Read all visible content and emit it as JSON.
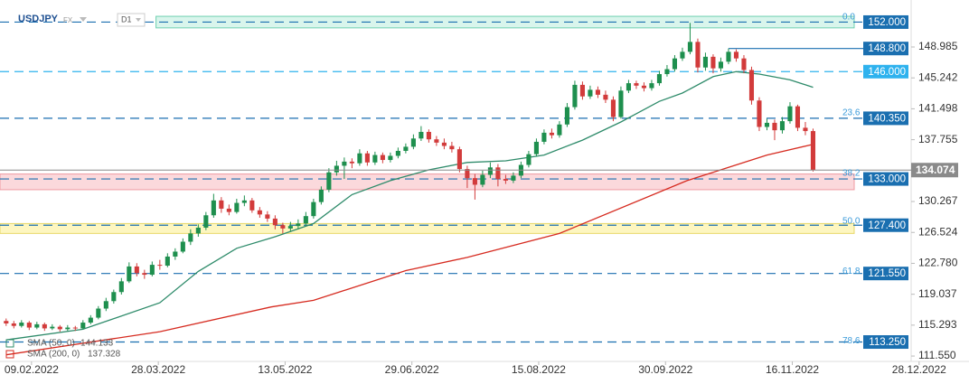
{
  "chart_data": {
    "type": "candlestick",
    "symbol": "USDJPY",
    "market": "FX",
    "interval": "D1",
    "xlim": [
      -0.8,
      118
    ],
    "ylim": [
      110.9,
      153.1
    ],
    "xticks": [
      {
        "value": 3.3,
        "label": "09.02.2022"
      },
      {
        "value": 19.8,
        "label": "28.03.2022"
      },
      {
        "value": 36.3,
        "label": "13.05.2022"
      },
      {
        "value": 52.8,
        "label": "29.06.2022"
      },
      {
        "value": 69.3,
        "label": "15.08.2022"
      },
      {
        "value": 85.8,
        "label": "30.09.2022"
      },
      {
        "value": 102.3,
        "label": "16.11.2022"
      },
      {
        "value": 118.8,
        "label": "28.12.2022"
      }
    ],
    "yticks": [
      148.985,
      145.242,
      141.498,
      137.755,
      130.267,
      126.524,
      {
        "value": 122.78,
        "label": "122.780"
      },
      119.037,
      115.293,
      {
        "value": 111.55,
        "label": "111.550"
      }
    ],
    "up_color": "#1e8f4e",
    "down_color": "#d23b3b",
    "candles": [
      [
        115.8,
        116.1,
        115.2,
        115.5
      ],
      [
        115.5,
        115.8,
        114.9,
        115.2
      ],
      [
        115.2,
        115.9,
        115.0,
        115.6
      ],
      [
        115.6,
        115.8,
        114.7,
        115.0
      ],
      [
        115.0,
        115.7,
        114.8,
        115.4
      ],
      [
        115.4,
        115.6,
        114.6,
        114.9
      ],
      [
        114.9,
        115.4,
        114.7,
        115.1
      ],
      [
        115.1,
        115.3,
        114.5,
        114.8
      ],
      [
        114.8,
        115.3,
        114.6,
        115.0
      ],
      [
        115.0,
        115.2,
        114.6,
        114.9
      ],
      [
        114.9,
        115.9,
        114.8,
        115.6
      ],
      [
        115.6,
        116.5,
        115.4,
        116.2
      ],
      [
        116.2,
        117.6,
        116.0,
        117.3
      ],
      [
        117.3,
        118.6,
        117.0,
        118.2
      ],
      [
        118.2,
        119.6,
        117.9,
        119.3
      ],
      [
        119.3,
        121.0,
        119.0,
        120.6
      ],
      [
        120.6,
        122.9,
        120.4,
        122.4
      ],
      [
        122.4,
        122.8,
        121.2,
        121.6
      ],
      [
        121.6,
        122.0,
        120.9,
        121.4
      ],
      [
        121.4,
        123.0,
        121.2,
        122.6
      ],
      [
        122.6,
        123.2,
        122.0,
        122.5
      ],
      [
        122.5,
        124.0,
        122.3,
        123.6
      ],
      [
        123.6,
        124.6,
        123.2,
        124.2
      ],
      [
        124.2,
        125.8,
        124.0,
        125.4
      ],
      [
        125.4,
        126.9,
        125.0,
        126.4
      ],
      [
        126.4,
        127.5,
        126.0,
        127.1
      ],
      [
        127.1,
        129.0,
        126.8,
        128.6
      ],
      [
        128.6,
        131.2,
        128.3,
        130.4
      ],
      [
        130.4,
        130.8,
        128.9,
        129.4
      ],
      [
        129.4,
        129.9,
        128.6,
        129.0
      ],
      [
        129.0,
        130.6,
        128.8,
        130.1
      ],
      [
        130.1,
        131.0,
        129.7,
        130.4
      ],
      [
        130.4,
        130.7,
        128.9,
        129.2
      ],
      [
        129.2,
        129.6,
        128.3,
        128.7
      ],
      [
        128.7,
        129.1,
        127.8,
        128.2
      ],
      [
        128.2,
        128.6,
        126.9,
        127.4
      ],
      [
        127.4,
        127.7,
        126.4,
        127.0
      ],
      [
        127.0,
        127.8,
        126.6,
        127.3
      ],
      [
        127.3,
        128.1,
        126.9,
        127.6
      ],
      [
        127.6,
        129.0,
        127.3,
        128.5
      ],
      [
        128.5,
        130.6,
        128.2,
        130.2
      ],
      [
        130.2,
        132.1,
        129.9,
        131.7
      ],
      [
        131.7,
        134.3,
        131.4,
        133.8
      ],
      [
        133.8,
        135.2,
        133.4,
        134.6
      ],
      [
        134.6,
        135.6,
        133.0,
        135.1
      ],
      [
        135.1,
        135.5,
        134.3,
        134.9
      ],
      [
        134.9,
        136.6,
        134.6,
        136.1
      ],
      [
        136.1,
        136.4,
        134.6,
        135.0
      ],
      [
        135.0,
        136.3,
        134.7,
        135.9
      ],
      [
        135.9,
        136.2,
        134.9,
        135.3
      ],
      [
        135.3,
        136.2,
        135.0,
        135.8
      ],
      [
        135.8,
        136.8,
        135.5,
        136.4
      ],
      [
        136.4,
        137.3,
        136.1,
        136.9
      ],
      [
        136.9,
        138.4,
        136.6,
        137.9
      ],
      [
        137.9,
        139.4,
        137.6,
        138.7
      ],
      [
        138.7,
        139.0,
        137.4,
        137.8
      ],
      [
        137.8,
        138.2,
        137.0,
        137.4
      ],
      [
        137.4,
        137.9,
        136.6,
        137.0
      ],
      [
        137.0,
        137.5,
        136.2,
        136.6
      ],
      [
        136.6,
        136.9,
        133.8,
        134.2
      ],
      [
        134.2,
        134.6,
        131.9,
        133.1
      ],
      [
        133.1,
        133.6,
        130.5,
        132.3
      ],
      [
        132.3,
        134.0,
        132.0,
        133.5
      ],
      [
        133.5,
        135.0,
        133.1,
        134.4
      ],
      [
        134.4,
        134.8,
        132.1,
        133.0
      ],
      [
        133.0,
        133.5,
        132.4,
        132.8
      ],
      [
        132.8,
        133.8,
        132.5,
        133.4
      ],
      [
        133.4,
        135.1,
        133.1,
        134.7
      ],
      [
        134.7,
        136.4,
        134.4,
        136.0
      ],
      [
        136.0,
        137.9,
        135.7,
        137.5
      ],
      [
        137.5,
        139.0,
        137.2,
        138.6
      ],
      [
        138.6,
        139.1,
        137.9,
        138.3
      ],
      [
        138.3,
        140.0,
        138.0,
        139.6
      ],
      [
        139.6,
        142.2,
        139.3,
        141.7
      ],
      [
        141.7,
        144.9,
        141.4,
        144.4
      ],
      [
        144.4,
        144.8,
        142.6,
        143.0
      ],
      [
        143.0,
        144.3,
        142.7,
        143.8
      ],
      [
        143.8,
        144.2,
        142.8,
        143.2
      ],
      [
        143.2,
        143.7,
        142.2,
        142.6
      ],
      [
        142.6,
        143.0,
        140.0,
        140.5
      ],
      [
        140.5,
        144.2,
        140.3,
        143.7
      ],
      [
        143.7,
        145.0,
        143.4,
        144.6
      ],
      [
        144.6,
        144.9,
        143.9,
        144.3
      ],
      [
        144.3,
        144.7,
        143.6,
        144.0
      ],
      [
        144.0,
        145.0,
        143.7,
        144.6
      ],
      [
        144.6,
        146.1,
        144.3,
        145.7
      ],
      [
        145.7,
        146.8,
        145.4,
        146.3
      ],
      [
        146.3,
        148.0,
        146.0,
        147.6
      ],
      [
        147.6,
        148.9,
        147.3,
        148.4
      ],
      [
        148.4,
        151.9,
        148.1,
        149.6
      ],
      [
        149.6,
        150.0,
        145.9,
        146.5
      ],
      [
        146.5,
        148.3,
        146.1,
        147.8
      ],
      [
        147.8,
        148.1,
        145.8,
        146.4
      ],
      [
        146.4,
        147.7,
        146.0,
        147.2
      ],
      [
        147.2,
        148.8,
        146.9,
        148.4
      ],
      [
        148.4,
        148.7,
        147.2,
        147.6
      ],
      [
        147.6,
        148.0,
        145.8,
        146.2
      ],
      [
        146.2,
        146.6,
        142.0,
        142.5
      ],
      [
        142.5,
        142.9,
        138.8,
        139.3
      ],
      [
        139.3,
        140.3,
        138.9,
        139.8
      ],
      [
        139.8,
        140.2,
        137.7,
        138.9
      ],
      [
        138.9,
        140.5,
        138.5,
        140.0
      ],
      [
        140.0,
        142.3,
        139.7,
        141.8
      ],
      [
        141.8,
        142.0,
        138.8,
        139.2
      ],
      [
        139.2,
        139.9,
        138.3,
        138.8
      ],
      [
        138.8,
        139.1,
        133.9,
        134.074
      ]
    ],
    "series": [
      {
        "name": "SMA (50, 0)",
        "last": 144.133,
        "color": "#2e8b6a",
        "x": [
          0,
          10,
          20,
          25,
          30,
          35,
          40,
          45,
          50,
          55,
          60,
          65,
          70,
          75,
          80,
          85,
          88,
          92,
          95,
          98,
          102,
          105
        ],
        "values": [
          113.5,
          114.8,
          118.0,
          121.8,
          124.6,
          126.0,
          127.6,
          131.1,
          132.8,
          134.1,
          135.0,
          135.2,
          135.9,
          137.7,
          139.9,
          142.4,
          143.4,
          145.4,
          146.0,
          145.7,
          145.0,
          144.1
        ]
      },
      {
        "name": "SMA (200, 0)",
        "last": 137.328,
        "color": "#d62b20",
        "x": [
          0,
          20,
          34.5,
          40,
          52,
          60,
          72,
          88.6,
          99,
          105
        ],
        "values": [
          111.7,
          114.5,
          117.5,
          118.3,
          121.9,
          123.5,
          126.4,
          132.8,
          135.9,
          137.2
        ]
      }
    ],
    "zones": [
      {
        "range": [
          151.3,
          152.7
        ],
        "from": 19.5,
        "fill": "#d9f5ec",
        "stroke": "#6fd0b0"
      },
      {
        "range": [
          131.7,
          133.6
        ],
        "from": -0.8,
        "fill": "#fbd9dc",
        "stroke": "#ef9aa2"
      },
      {
        "range": [
          126.4,
          127.6
        ],
        "from": -0.8,
        "fill": "#fdf6c0",
        "stroke": "#e8d86a"
      }
    ],
    "levels": [
      {
        "value": 152,
        "label": "152.000",
        "style": "dashed",
        "from": -0.8,
        "color": "#1a6fb0"
      },
      {
        "value": 148.8,
        "label": "148.800",
        "style": "solid",
        "from": 94,
        "color": "#1a6fb0"
      },
      {
        "value": 146,
        "label": "146.000",
        "style": "dashed",
        "from": -0.8,
        "color": "#2eb2ee"
      },
      {
        "value": 140.35,
        "label": "140.350",
        "style": "dashed",
        "from": -0.8,
        "color": "#1a6fb0"
      },
      {
        "value": 133,
        "label": "133.000",
        "style": "dashed",
        "from": -0.8,
        "color": "#1a6fb0"
      },
      {
        "value": 127.4,
        "label": "127.400",
        "style": "dashed",
        "from": -0.8,
        "color": "#1a6fb0"
      },
      {
        "value": 121.55,
        "label": "121.550",
        "style": "dashed",
        "from": -0.8,
        "color": "#1a6fb0"
      },
      {
        "value": 113.25,
        "label": "113.250",
        "style": "dashed",
        "from": -0.8,
        "color": "#1a6fb0"
      }
    ],
    "fib": [
      {
        "label": "0.0",
        "price": 152.6
      },
      {
        "label": "23.6",
        "price": 141.0
      },
      {
        "label": "38.2",
        "price": 133.7
      },
      {
        "label": "50.0",
        "price": 127.9
      },
      {
        "label": "61.8",
        "price": 121.8
      },
      {
        "label": "78.6",
        "price": 113.4
      }
    ],
    "last_price": {
      "value": 134.074,
      "label": "134.074",
      "color": "#8a8a8a"
    }
  }
}
